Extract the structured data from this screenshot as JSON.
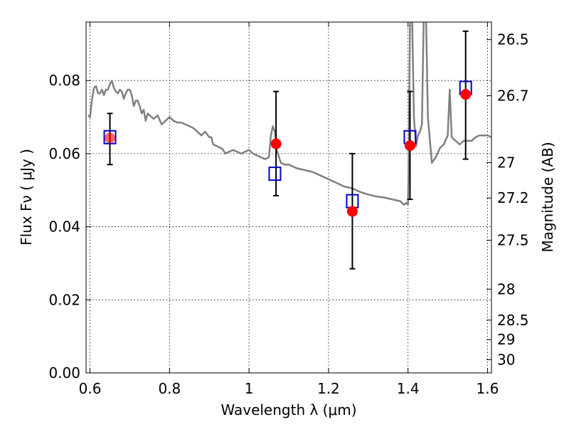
{
  "chart_data": {
    "type": "scatter",
    "xlabel": "Wavelength  λ (μm)",
    "ylabel": "Flux  Fν  ( μJy )",
    "ylabel_right": "Magnitude (AB)",
    "xlim": [
      0.59,
      1.61
    ],
    "ylim": [
      0.0,
      0.096
    ],
    "grid": true,
    "x_ticks": [
      0.6,
      0.8,
      1.0,
      1.2,
      1.4,
      1.6
    ],
    "x_tick_labels": [
      "0.6",
      "0.8",
      "1",
      "1.2",
      "1.4",
      "1.6"
    ],
    "y_ticks": [
      0.0,
      0.02,
      0.04,
      0.06,
      0.08
    ],
    "y_tick_labels": [
      "0.00",
      "0.02",
      "0.04",
      "0.06",
      "0.08"
    ],
    "right_ticks": [
      {
        "mag": 26.5,
        "label": "26.5"
      },
      {
        "mag": 26.7,
        "label": "26.7"
      },
      {
        "mag": 27.0,
        "label": "27"
      },
      {
        "mag": 27.2,
        "label": "27.2"
      },
      {
        "mag": 27.5,
        "label": "27.5"
      },
      {
        "mag": 28.0,
        "label": "28"
      },
      {
        "mag": 28.5,
        "label": "28.5"
      },
      {
        "mag": 29.0,
        "label": "29"
      },
      {
        "mag": 30.0,
        "label": "30"
      }
    ],
    "model_spectrum": {
      "color": "#808080",
      "x": [
        0.595,
        0.6,
        0.605,
        0.61,
        0.615,
        0.62,
        0.625,
        0.63,
        0.635,
        0.64,
        0.645,
        0.65,
        0.655,
        0.66,
        0.665,
        0.67,
        0.675,
        0.68,
        0.685,
        0.69,
        0.695,
        0.7,
        0.705,
        0.71,
        0.715,
        0.72,
        0.725,
        0.73,
        0.735,
        0.74,
        0.745,
        0.75,
        0.755,
        0.76,
        0.77,
        0.78,
        0.79,
        0.8,
        0.81,
        0.82,
        0.83,
        0.84,
        0.85,
        0.86,
        0.87,
        0.88,
        0.89,
        0.9,
        0.905,
        0.91,
        0.92,
        0.93,
        0.935,
        0.94,
        0.95,
        0.96,
        0.97,
        0.98,
        0.99,
        1.0,
        1.01,
        1.02,
        1.03,
        1.04,
        1.05,
        1.055,
        1.06,
        1.065,
        1.07,
        1.08,
        1.09,
        1.1,
        1.12,
        1.14,
        1.16,
        1.18,
        1.2,
        1.22,
        1.24,
        1.26,
        1.28,
        1.3,
        1.32,
        1.34,
        1.36,
        1.38,
        1.39,
        1.395,
        1.4,
        1.402,
        1.405,
        1.41,
        1.415,
        1.42,
        1.425,
        1.43,
        1.435,
        1.44,
        1.445,
        1.45,
        1.46,
        1.47,
        1.48,
        1.49,
        1.5,
        1.505,
        1.51,
        1.52,
        1.53,
        1.54,
        1.55,
        1.56,
        1.57,
        1.58,
        1.59,
        1.6,
        1.61
      ],
      "y": [
        0.0705,
        0.07,
        0.075,
        0.078,
        0.0785,
        0.0765,
        0.0765,
        0.0775,
        0.076,
        0.0775,
        0.0775,
        0.079,
        0.08,
        0.078,
        0.077,
        0.0765,
        0.0775,
        0.077,
        0.075,
        0.0765,
        0.0775,
        0.0775,
        0.076,
        0.073,
        0.0745,
        0.0745,
        0.073,
        0.071,
        0.072,
        0.069,
        0.071,
        0.0705,
        0.07,
        0.0695,
        0.0705,
        0.068,
        0.069,
        0.07,
        0.069,
        0.0685,
        0.0685,
        0.068,
        0.0675,
        0.067,
        0.066,
        0.065,
        0.066,
        0.0645,
        0.0645,
        0.0625,
        0.062,
        0.0615,
        0.061,
        0.06,
        0.0605,
        0.061,
        0.0605,
        0.06,
        0.0605,
        0.061,
        0.06,
        0.0595,
        0.059,
        0.0585,
        0.059,
        0.065,
        0.0675,
        0.066,
        0.061,
        0.0575,
        0.057,
        0.057,
        0.056,
        0.0555,
        0.055,
        0.054,
        0.053,
        0.052,
        0.051,
        0.0505,
        0.0495,
        0.0488,
        0.0483,
        0.048,
        0.0475,
        0.047,
        0.046,
        0.0465,
        0.046,
        0.06,
        0.095,
        0.1,
        0.07,
        0.062,
        0.065,
        0.066,
        0.068,
        0.1,
        0.1,
        0.07,
        0.0575,
        0.059,
        0.0615,
        0.0625,
        0.065,
        0.0775,
        0.0645,
        0.0635,
        0.0625,
        0.0635,
        0.0635,
        0.0635,
        0.0645,
        0.065,
        0.065,
        0.065,
        0.0645
      ]
    },
    "model_points": {
      "marker": "open-square",
      "color": "#0000cc",
      "x": [
        0.65,
        1.065,
        1.26,
        1.405,
        1.545
      ],
      "y": [
        0.0645,
        0.0545,
        0.047,
        0.0645,
        0.078
      ]
    },
    "observed_points": {
      "marker": "filled-circle",
      "color": "#ff0000",
      "x": [
        0.65,
        1.068,
        1.26,
        1.405,
        1.545
      ],
      "y": [
        0.0643,
        0.0627,
        0.0442,
        0.0622,
        0.0762
      ],
      "yerr_low": [
        0.057,
        0.0485,
        0.0285,
        0.0475,
        0.0585
      ],
      "yerr_high": [
        0.071,
        0.077,
        0.06,
        0.077,
        0.0935
      ]
    }
  }
}
